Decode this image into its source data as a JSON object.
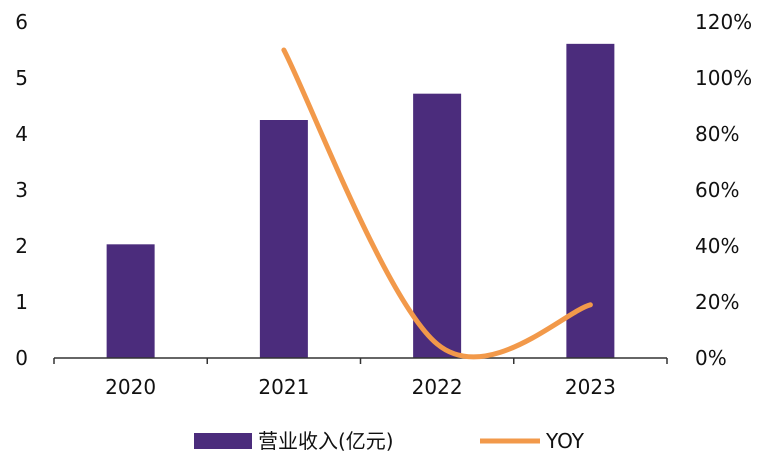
{
  "chart_data": {
    "type": "bar",
    "categories": [
      "2020",
      "2021",
      "2022",
      "2023"
    ],
    "series": [
      {
        "name": "营业收入(亿元)",
        "type": "bar",
        "axis": "left",
        "color": "#4B2C7C",
        "values": [
          2.03,
          4.25,
          4.72,
          5.61
        ]
      },
      {
        "name": "YOY",
        "type": "line",
        "axis": "right",
        "color": "#F2994A",
        "values": [
          null,
          1.1,
          0.05,
          0.19
        ]
      }
    ],
    "left_axis": {
      "ylim": [
        0,
        6
      ],
      "ticks": [
        "0",
        "1",
        "2",
        "3",
        "4",
        "5",
        "6"
      ]
    },
    "right_axis": {
      "ylim": [
        0,
        1.2
      ],
      "ticks": [
        "0%",
        "20%",
        "40%",
        "60%",
        "80%",
        "100%",
        "120%"
      ]
    },
    "grid": false,
    "legend": "bottom"
  }
}
